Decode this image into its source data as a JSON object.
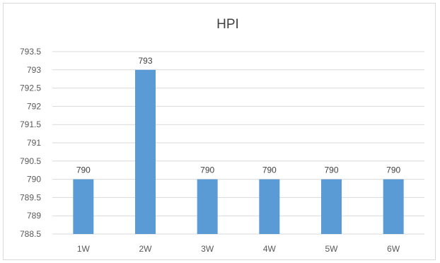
{
  "chart_data": {
    "type": "bar",
    "title": "HPI",
    "xlabel": "",
    "ylabel": "",
    "categories": [
      "1W",
      "2W",
      "3W",
      "4W",
      "5W",
      "6W"
    ],
    "values": [
      790,
      793,
      790,
      790,
      790,
      790
    ],
    "data_labels": [
      "790",
      "793",
      "790",
      "790",
      "790",
      "790"
    ],
    "ylim": [
      788.5,
      793.5
    ],
    "yticks": [
      788.5,
      789,
      789.5,
      790,
      790.5,
      791,
      791.5,
      792,
      792.5,
      793,
      793.5
    ],
    "ytick_labels": [
      "788.5",
      "789",
      "789.5",
      "790",
      "790.5",
      "791",
      "791.5",
      "792",
      "792.5",
      "793",
      "793.5"
    ],
    "grid": true,
    "legend": "none",
    "colors": {
      "bar": "#5b9bd5",
      "grid": "#d9d9d9",
      "text": "#595959"
    }
  }
}
